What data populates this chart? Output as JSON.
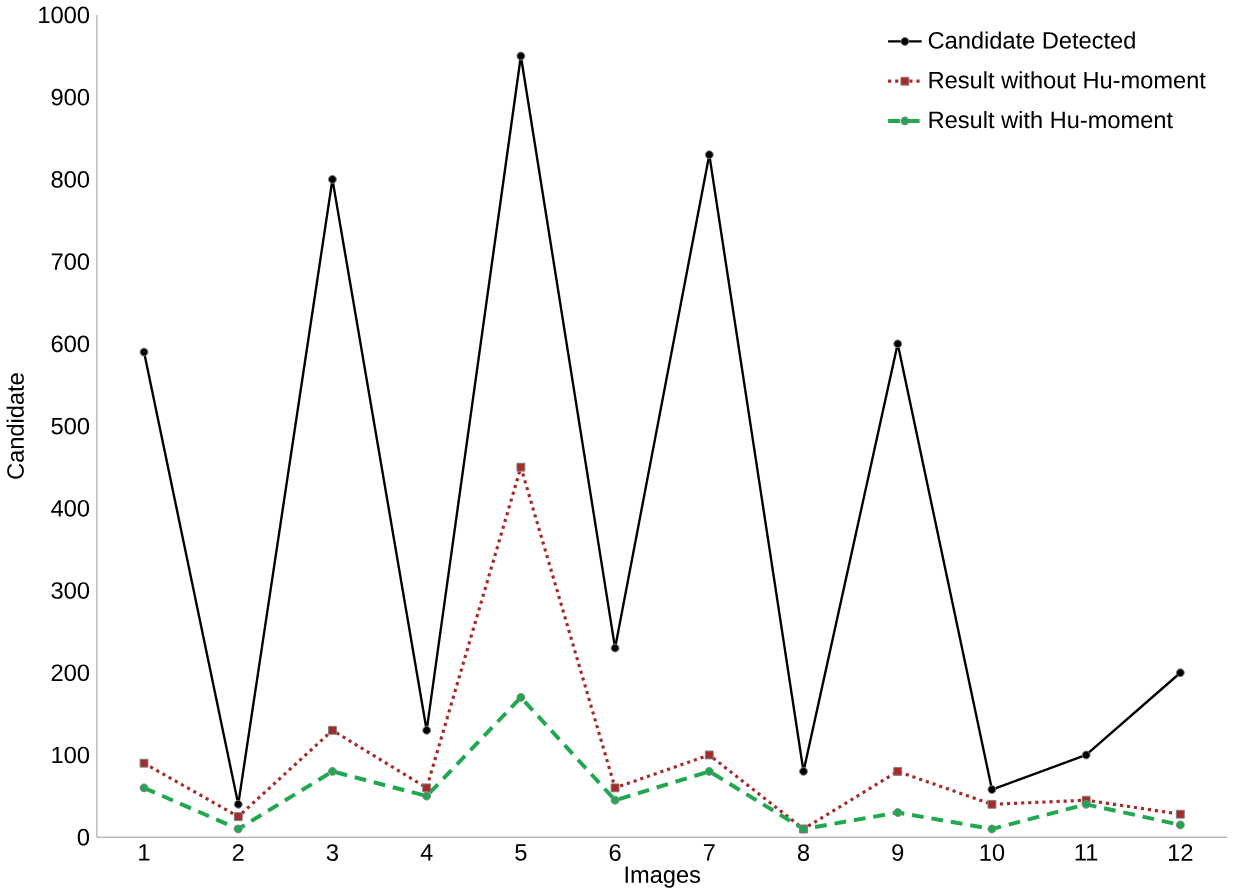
{
  "chart_data": {
    "type": "line",
    "xlabel": "Images",
    "ylabel": "Candidate",
    "categories": [
      "1",
      "2",
      "3",
      "4",
      "5",
      "6",
      "7",
      "8",
      "9",
      "10",
      "11",
      "12"
    ],
    "ylim": [
      0,
      1000
    ],
    "yticks": [
      0,
      100,
      200,
      300,
      400,
      500,
      600,
      700,
      800,
      900,
      1000
    ],
    "grid": false,
    "legend": "top right",
    "series": [
      {
        "name": "Candidate Detected",
        "color": "#000000",
        "line_style": "solid",
        "marker": "circle",
        "values": [
          590,
          40,
          800,
          130,
          950,
          230,
          830,
          80,
          600,
          58,
          100,
          200
        ]
      },
      {
        "name": "Result without Hu-moment",
        "color": "#a52a2a",
        "line_style": "dotted",
        "marker": "square",
        "values": [
          90,
          25,
          130,
          60,
          450,
          60,
          100,
          10,
          80,
          40,
          45,
          28
        ]
      },
      {
        "name": "Result with Hu-moment",
        "color": "#1fa84f",
        "line_style": "dashed",
        "marker": "circle",
        "values": [
          60,
          10,
          80,
          50,
          170,
          45,
          80,
          10,
          30,
          10,
          40,
          15
        ]
      }
    ]
  }
}
